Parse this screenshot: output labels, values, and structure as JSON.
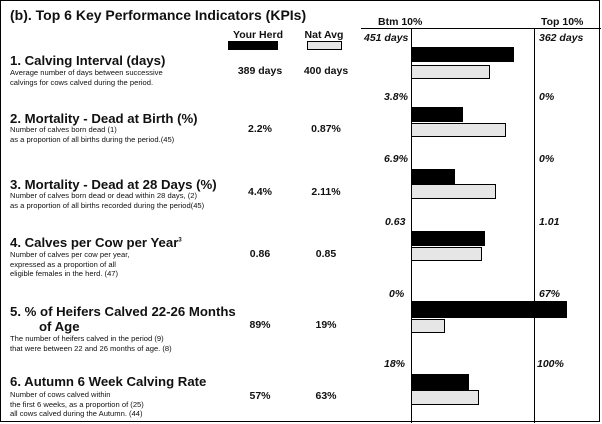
{
  "title": "(b). Top 6 Key Performance Indicators (KPIs)",
  "headers": {
    "your_herd": "Your Herd",
    "nat_avg": "Nat Avg",
    "btm": "Btm 10%",
    "top": "Top 10%"
  },
  "colors": {
    "herd": "#000000",
    "nat": "#e6e6e6"
  },
  "kpis": [
    {
      "title": "1. Calving Interval (days)",
      "desc": [
        "Average number of days between successive",
        "calvings for cows calved during the period."
      ],
      "herd": "389 days",
      "nat": "400 days",
      "btm": "451 days",
      "top": "362 days",
      "herd_frac": 0.84,
      "nat_frac": 0.64
    },
    {
      "title": "2. Mortality - Dead at Birth (%)",
      "desc": [
        "Number of calves born dead (1)",
        "as a proportion of all births during the period.(45)"
      ],
      "herd": "2.2%",
      "nat": "0.87%",
      "btm": "3.8%",
      "top": "0%",
      "herd_frac": 0.42,
      "nat_frac": 0.77
    },
    {
      "title": "3. Mortality - Dead at 28 Days (%)",
      "desc": [
        "Number of calves born dead or dead within 28 days, (2)",
        "as a proportion of all births recorded during the period(45)"
      ],
      "herd": "4.4%",
      "nat": "2.11%",
      "btm": "6.9%",
      "top": "0%",
      "herd_frac": 0.36,
      "nat_frac": 0.69
    },
    {
      "title": "4. Calves per Cow per Year",
      "title_sup": "3",
      "desc": [
        "Number of calves per cow per year,",
        "expressed as a proportion of all",
        "eligible females in the herd. (47)"
      ],
      "herd": "0.86",
      "nat": "0.85",
      "btm": "0.63",
      "top": "1.01",
      "herd_frac": 0.6,
      "nat_frac": 0.58
    },
    {
      "title": "5. % of Heifers Calved 22-26 Months",
      "title2": "of Age",
      "desc": [
        "The number of heifers calved in the period  (9)",
        "that were between 22 and 26 months of age. (8)"
      ],
      "herd": "89%",
      "nat": "19%",
      "btm": "0%",
      "top": "67%",
      "herd_frac": 1.3,
      "nat_frac": 0.28
    },
    {
      "title": "6. Autumn 6 Week Calving Rate",
      "desc": [
        "Number of cows calved within",
        "the first 6 weeks, as a proportion of   (25)",
        "all cows calved during the Autumn.    (44)"
      ],
      "herd": "57%",
      "nat": "63%",
      "btm": "18%",
      "top": "100%",
      "herd_frac": 0.47,
      "nat_frac": 0.55
    }
  ]
}
